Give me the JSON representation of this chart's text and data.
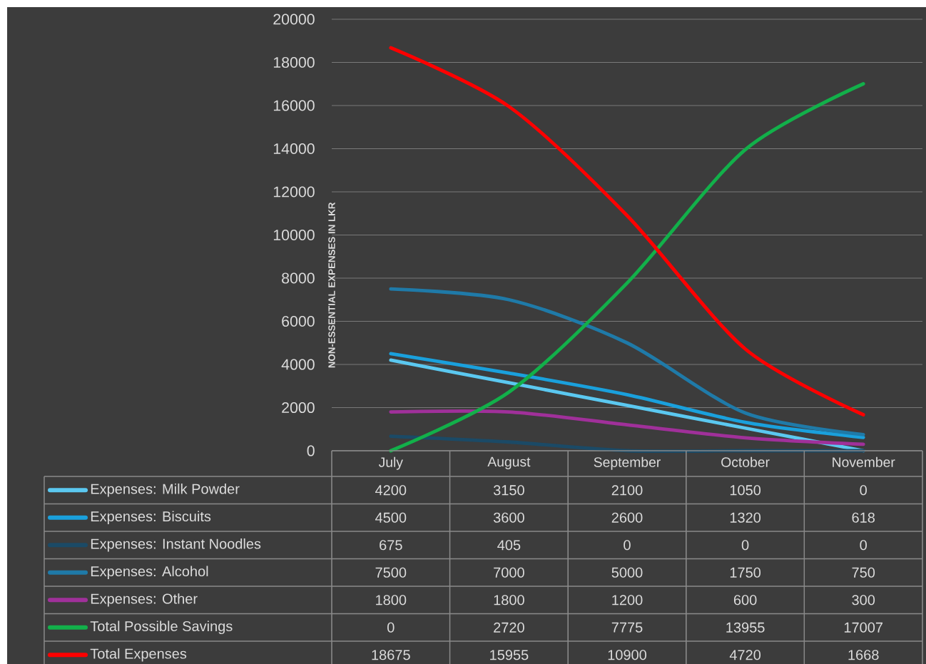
{
  "chart_data": {
    "type": "line",
    "ylabel": "NON-ESSENTIAL EXPENSES IN LKR",
    "categories": [
      "July",
      "August",
      "September",
      "October",
      "November"
    ],
    "ylim": [
      0,
      20000
    ],
    "yticks": [
      0,
      2000,
      4000,
      6000,
      8000,
      10000,
      12000,
      14000,
      16000,
      18000,
      20000
    ],
    "grid": "y",
    "data_labels": true,
    "legend": "bottom",
    "series": [
      {
        "name": "Expenses: Milk Powder",
        "color": "#5bc8f0",
        "values": [
          4200,
          3150,
          2100,
          1050,
          0
        ]
      },
      {
        "name": "Expenses: Biscuits",
        "color": "#1aa0dc",
        "values": [
          4500,
          3600,
          2600,
          1320,
          618
        ]
      },
      {
        "name": "Expenses: Instant Noodles",
        "color": "#1b4a66",
        "values": [
          675,
          405,
          0,
          0,
          0
        ]
      },
      {
        "name": "Expenses: Alcohol",
        "color": "#1f7aa8",
        "values": [
          7500,
          7000,
          5000,
          1750,
          750
        ]
      },
      {
        "name": "Expenses: Other",
        "color": "#a0309a",
        "values": [
          1800,
          1800,
          1200,
          600,
          300
        ]
      },
      {
        "name": "Total Possible Savings",
        "color": "#12b04a",
        "values": [
          0,
          2720,
          7775,
          13955,
          17007
        ]
      },
      {
        "name": "Total Expenses",
        "color": "#ff0000",
        "values": [
          18675,
          15955,
          10900,
          4720,
          1668
        ]
      }
    ]
  }
}
